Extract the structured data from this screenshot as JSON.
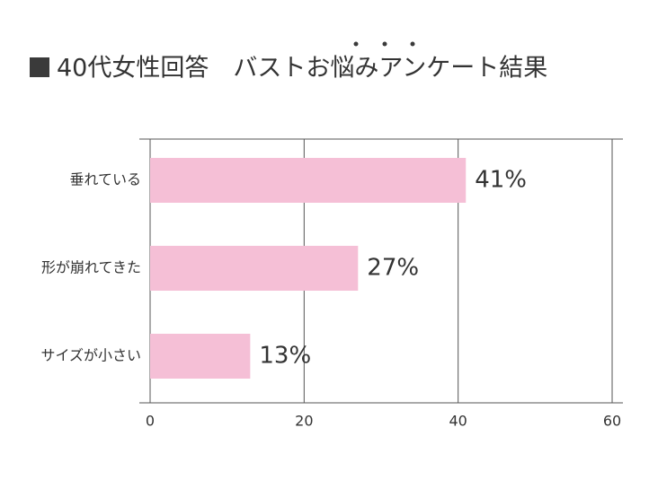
{
  "chart_data": {
    "type": "hbar",
    "title": "40代女性回答　バストお悩みアンケート結果",
    "categories": [
      "垂れている",
      "形が崩れてきた",
      "サイズが小さい"
    ],
    "values": [
      41,
      27,
      13
    ],
    "value_labels": [
      "41%",
      "27%",
      "13%"
    ],
    "color": "#f5bfd6",
    "xlim": [
      0,
      60
    ],
    "xticks": [
      0,
      20,
      40,
      60
    ],
    "grid": true
  }
}
